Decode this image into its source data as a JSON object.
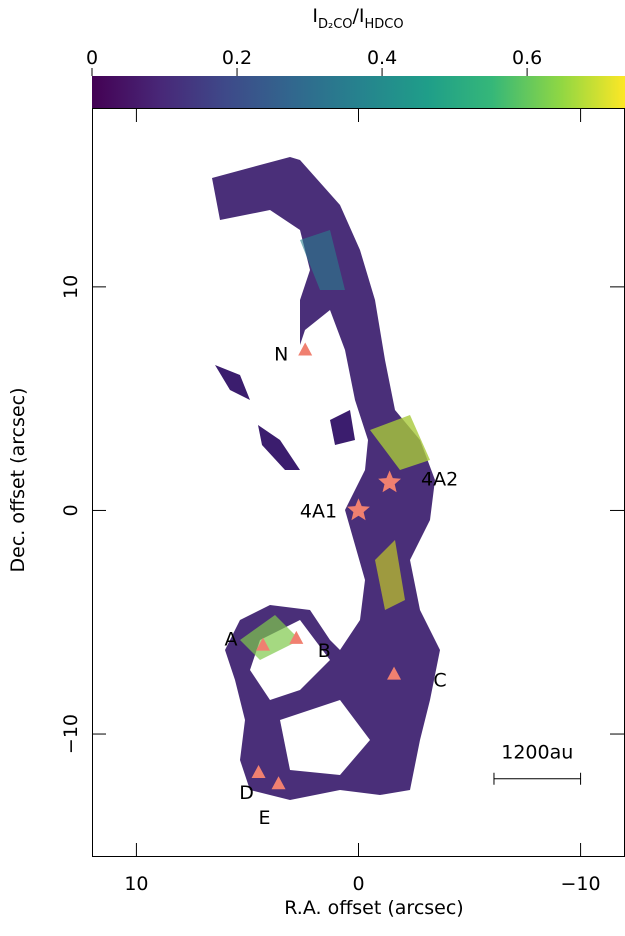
{
  "chart_data": {
    "type": "map",
    "x_label": "R.A. offset (arcsec)",
    "y_label": "Dec. offset (arcsec)",
    "xlim": [
      12,
      -12
    ],
    "ylim": [
      -15.5,
      18
    ],
    "xticks": [
      10,
      0,
      {
        "value": -10,
        "label": "−10"
      }
    ],
    "yticks": [
      {
        "value": -10,
        "label": "−10"
      },
      0,
      10
    ],
    "colorbar_label": [
      "I",
      "D₂CO",
      "/I",
      "HDCO"
    ],
    "clim": [
      0,
      0.735
    ],
    "cticks": [
      0,
      0.2,
      0.4,
      0.6
    ],
    "marker_color": "#f08070",
    "sources": [
      {
        "name": "N",
        "x": 2.4,
        "y": 7.2,
        "marker": "triangle"
      },
      {
        "name": "4A1",
        "x": 0,
        "y": 0,
        "marker": "star"
      },
      {
        "name": "4A2",
        "x": -1.4,
        "y": 1.25,
        "marker": "star"
      },
      {
        "name": "A",
        "x": 4.3,
        "y": -6.0,
        "marker": "triangle"
      },
      {
        "name": "B",
        "x": 2.8,
        "y": -5.7,
        "marker": "triangle"
      },
      {
        "name": "C",
        "x": -1.6,
        "y": -7.3,
        "marker": "triangle"
      },
      {
        "name": "D",
        "x": 4.5,
        "y": -11.7,
        "marker": "triangle"
      },
      {
        "name": "E",
        "x": 3.6,
        "y": -12.2,
        "marker": "triangle"
      }
    ],
    "scalebar": {
      "label": "1200au",
      "x": [
        -6.1,
        -10
      ],
      "y": -12
    }
  }
}
